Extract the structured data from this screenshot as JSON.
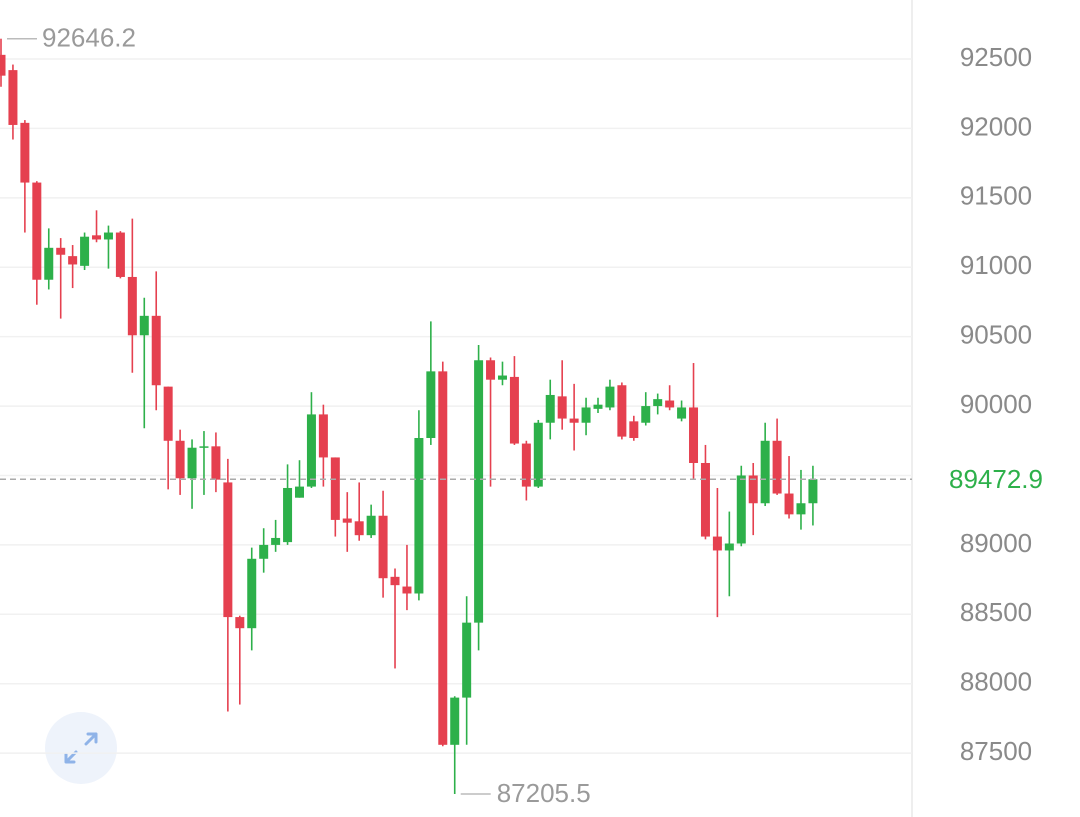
{
  "chart_data": {
    "type": "candlestick",
    "open": [
      92530,
      92420,
      92040,
      91610,
      90910,
      91140,
      91080,
      91010,
      91230,
      91200,
      91250,
      90930,
      90510,
      90650,
      90140,
      89750,
      89480,
      89700,
      89710,
      89450,
      88480,
      88400,
      88900,
      89000,
      89020,
      89340,
      89420,
      89940,
      89630,
      89190,
      89170,
      89070,
      89210,
      88770,
      88700,
      88650,
      89770,
      90250,
      87560,
      87900,
      88440,
      90330,
      90190,
      90210,
      89730,
      89420,
      89880,
      90070,
      89910,
      89880,
      89980,
      89990,
      90150,
      89890,
      89880,
      90000,
      90040,
      89910,
      89990,
      89590,
      89060,
      88960,
      89010,
      89500,
      89300,
      89750,
      89370,
      89220,
      89300
    ],
    "high": [
      92646.2,
      92460,
      92060,
      91620,
      91280,
      91210,
      91160,
      91250,
      91410,
      91300,
      91260,
      91350,
      90780,
      90970,
      90140,
      89830,
      89760,
      89820,
      89810,
      89620,
      88490,
      88980,
      89120,
      89180,
      89580,
      89610,
      90100,
      90010,
      89630,
      89380,
      89450,
      89290,
      89390,
      88830,
      89000,
      89970,
      90610,
      90320,
      87910,
      88630,
      90440,
      90350,
      90320,
      90360,
      89750,
      89900,
      90190,
      90330,
      90160,
      90060,
      90060,
      90190,
      90170,
      89930,
      90100,
      90090,
      90150,
      90040,
      90310,
      89720,
      89410,
      89240,
      89570,
      89590,
      89880,
      89910,
      89640,
      89540,
      89570
    ],
    "low": [
      92300,
      91920,
      91250,
      90730,
      90840,
      90630,
      90850,
      90980,
      91180,
      90990,
      90920,
      90240,
      89840,
      89970,
      89400,
      89360,
      89260,
      89360,
      89380,
      87800,
      87850,
      88240,
      88800,
      88950,
      89000,
      89340,
      89410,
      89420,
      89060,
      88950,
      89030,
      89050,
      88620,
      88110,
      88530,
      88600,
      89720,
      87550,
      87205.5,
      87560,
      88240,
      89420,
      90150,
      89720,
      89320,
      89410,
      89760,
      89830,
      89680,
      89790,
      89950,
      89970,
      89760,
      89750,
      89860,
      89940,
      89970,
      89890,
      89470,
      89040,
      88480,
      88630,
      88990,
      89070,
      89280,
      89360,
      89190,
      89110,
      89140
    ],
    "close": [
      92380,
      92025,
      91610,
      90910,
      91140,
      91090,
      91020,
      91220,
      91200,
      91250,
      90930,
      90510,
      90650,
      90150,
      89750,
      89480,
      89700,
      89710,
      89470,
      88480,
      88400,
      88900,
      89000,
      89050,
      89410,
      89420,
      89940,
      89630,
      89180,
      89160,
      89070,
      89210,
      88760,
      88710,
      88650,
      89770,
      90250,
      87560,
      87900,
      88440,
      90330,
      90190,
      90220,
      89730,
      89420,
      89880,
      90080,
      89910,
      89880,
      89990,
      90010,
      90140,
      89780,
      89770,
      90000,
      90050,
      89990,
      89990,
      89590,
      89060,
      88960,
      89010,
      89500,
      89300,
      89750,
      89370,
      89220,
      89300,
      89472.9
    ],
    "up_color": "#2db04a",
    "down_color": "#e5404f",
    "ylim": [
      87040,
      92925
    ],
    "yticks": [
      87500,
      88000,
      88500,
      89000,
      89500,
      90000,
      90500,
      91000,
      91500,
      92000,
      92500
    ],
    "ytick_labels_shown": [
      87500,
      88000,
      88500,
      89000,
      90000,
      90500,
      91000,
      91500,
      92000,
      92500
    ],
    "grid": true,
    "last_price": 89472.9,
    "max_marker": 92646.2,
    "min_marker": 87205.5
  }
}
